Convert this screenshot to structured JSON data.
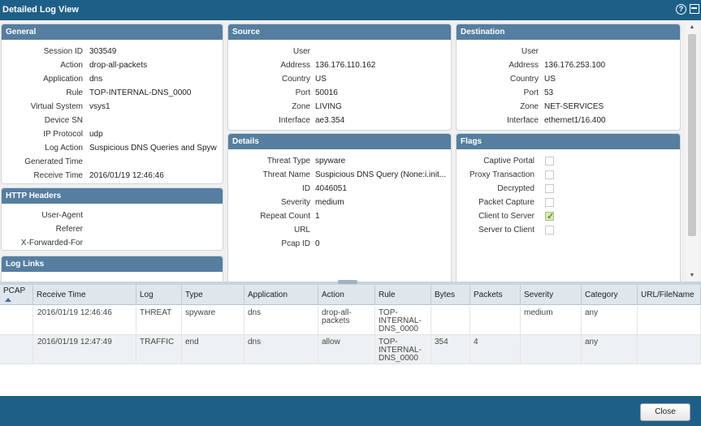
{
  "window": {
    "title": "Detailed Log View"
  },
  "general": {
    "title": "General",
    "rows": [
      {
        "label": "Session ID",
        "value": "303549"
      },
      {
        "label": "Action",
        "value": "drop-all-packets"
      },
      {
        "label": "Application",
        "value": "dns"
      },
      {
        "label": "Rule",
        "value": "TOP-INTERNAL-DNS_0000"
      },
      {
        "label": "Virtual System",
        "value": "vsys1"
      },
      {
        "label": "Device SN",
        "value": ""
      },
      {
        "label": "IP Protocol",
        "value": "udp"
      },
      {
        "label": "Log Action",
        "value": "Suspicious DNS Queries and Spyw"
      },
      {
        "label": "Generated Time",
        "value": ""
      },
      {
        "label": "Receive Time",
        "value": "2016/01/19 12:46:46"
      }
    ]
  },
  "http_headers": {
    "title": "HTTP Headers",
    "rows": [
      {
        "label": "User-Agent",
        "value": ""
      },
      {
        "label": "Referer",
        "value": ""
      },
      {
        "label": "X-Forwarded-For",
        "value": ""
      }
    ]
  },
  "log_links": {
    "title": "Log Links"
  },
  "source": {
    "title": "Source",
    "rows": [
      {
        "label": "User",
        "value": ""
      },
      {
        "label": "Address",
        "value": "136.176.110.162"
      },
      {
        "label": "Country",
        "value": "US"
      },
      {
        "label": "Port",
        "value": "50016"
      },
      {
        "label": "Zone",
        "value": "LIVING"
      },
      {
        "label": "Interface",
        "value": "ae3.354"
      }
    ]
  },
  "details": {
    "title": "Details",
    "rows": [
      {
        "label": "Threat Type",
        "value": "spyware"
      },
      {
        "label": "Threat Name",
        "value": "Suspicious DNS Query (None:i.init..."
      },
      {
        "label": "ID",
        "value": "4046051"
      },
      {
        "label": "Severity",
        "value": "medium"
      },
      {
        "label": "Repeat Count",
        "value": "1"
      },
      {
        "label": "URL",
        "value": ""
      },
      {
        "label": "Pcap ID",
        "value": "0"
      }
    ]
  },
  "destination": {
    "title": "Destination",
    "rows": [
      {
        "label": "User",
        "value": ""
      },
      {
        "label": "Address",
        "value": "136.176.253.100"
      },
      {
        "label": "Country",
        "value": "US"
      },
      {
        "label": "Port",
        "value": "53"
      },
      {
        "label": "Zone",
        "value": "NET-SERVICES"
      },
      {
        "label": "Interface",
        "value": "ethernet1/16.400"
      }
    ]
  },
  "flags": {
    "title": "Flags",
    "items": [
      {
        "label": "Captive Portal",
        "checked": false
      },
      {
        "label": "Proxy Transaction",
        "checked": false
      },
      {
        "label": "Decrypted",
        "checked": false
      },
      {
        "label": "Packet Capture",
        "checked": false
      },
      {
        "label": "Client to Server",
        "checked": true
      },
      {
        "label": "Server to Client",
        "checked": false
      }
    ]
  },
  "log_table": {
    "columns": [
      "PCAP",
      "Receive Time",
      "Log",
      "Type",
      "Application",
      "Action",
      "Rule",
      "Bytes",
      "Packets",
      "Severity",
      "Category",
      "URL/FileName"
    ],
    "rows": [
      [
        "",
        "2016/01/19 12:46:46",
        "THREAT",
        "spyware",
        "dns",
        "drop-all-\npackets",
        "TOP-\nINTERNAL-\nDNS_0000",
        "",
        "",
        "medium",
        "any",
        ""
      ],
      [
        "",
        "2016/01/19 12:47:49",
        "TRAFFIC",
        "end",
        "dns",
        "allow",
        "TOP-\nINTERNAL-\nDNS_0000",
        "354",
        "4",
        "",
        "any",
        ""
      ]
    ]
  },
  "footer": {
    "close_label": "Close"
  }
}
